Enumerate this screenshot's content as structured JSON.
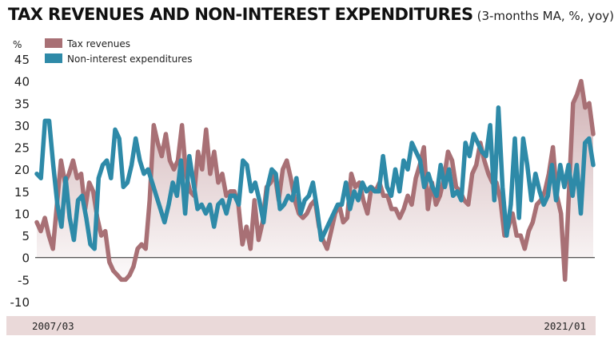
{
  "title": "TAX REVENUES AND NON-INTEREST EXPENDITURES",
  "subtitle": "(3-months MA, %, yoy)",
  "colors": {
    "tax": "#a87075",
    "expenditures": "#2e8aa8",
    "band": "#ead9d9"
  },
  "chart_data": {
    "type": "line",
    "ylabel": "%",
    "ylim": [
      -10,
      45
    ],
    "yticks": [
      45,
      40,
      35,
      30,
      25,
      20,
      15,
      10,
      5,
      0,
      -5,
      -10
    ],
    "xlim": [
      "2007/03",
      "2021/01"
    ],
    "x_start_label": "2007/03",
    "x_end_label": "2021/01",
    "legend_position": "top-left",
    "series": [
      {
        "name": "Tax revenues",
        "color": "#a87075",
        "values": [
          8,
          6,
          9,
          5,
          2,
          12,
          22,
          17,
          19,
          22,
          18,
          19,
          11,
          17,
          15,
          9,
          5,
          6,
          -1,
          -3,
          -4,
          -5,
          -5,
          -4,
          -2,
          2,
          3,
          2,
          13,
          30,
          26,
          23,
          28,
          22,
          20,
          22,
          30,
          19,
          15,
          14,
          24,
          20,
          29,
          19,
          24,
          17,
          19,
          14,
          15,
          15,
          12,
          3,
          7,
          2,
          13,
          4,
          8,
          16,
          17,
          19,
          13,
          20,
          22,
          18,
          13,
          10,
          9,
          10,
          12,
          13,
          7,
          4,
          2,
          6,
          10,
          12,
          8,
          9,
          19,
          16,
          17,
          13,
          10,
          16,
          15,
          17,
          14,
          14,
          11,
          11,
          9,
          11,
          14,
          12,
          18,
          21,
          25,
          11,
          17,
          12,
          14,
          18,
          24,
          22,
          16,
          15,
          13,
          12,
          19,
          21,
          26,
          22,
          19,
          17,
          17,
          13,
          5,
          7,
          10,
          5,
          5,
          2,
          6,
          8,
          12,
          13,
          15,
          19,
          25,
          14,
          10,
          -5,
          15,
          35,
          37,
          40,
          34,
          35,
          28
        ]
      },
      {
        "name": "Non-interest expenditures",
        "color": "#2e8aa8",
        "values": [
          19,
          18,
          31,
          31,
          21,
          12,
          7,
          18,
          9,
          4,
          13,
          14,
          9,
          3,
          2,
          18,
          21,
          22,
          18,
          29,
          27,
          16,
          17,
          21,
          27,
          22,
          19,
          20,
          17,
          14,
          11,
          8,
          12,
          17,
          14,
          22,
          10,
          23,
          17,
          11,
          12,
          10,
          12,
          7,
          12,
          13,
          10,
          14,
          14,
          12,
          22,
          21,
          15,
          17,
          13,
          8,
          16,
          20,
          19,
          11,
          12,
          14,
          13,
          18,
          10,
          13,
          14,
          17,
          11,
          4,
          6,
          8,
          10,
          12,
          12,
          17,
          11,
          15,
          13,
          17,
          15,
          16,
          15,
          15,
          23,
          16,
          14,
          20,
          15,
          22,
          20,
          26,
          24,
          22,
          16,
          19,
          16,
          14,
          21,
          16,
          20,
          14,
          15,
          13,
          26,
          23,
          28,
          26,
          24,
          23,
          30,
          13,
          34,
          16,
          5,
          12,
          27,
          9,
          27,
          21,
          13,
          19,
          15,
          12,
          14,
          21,
          13,
          21,
          16,
          21,
          14,
          21,
          10,
          26,
          27,
          21
        ]
      }
    ]
  }
}
